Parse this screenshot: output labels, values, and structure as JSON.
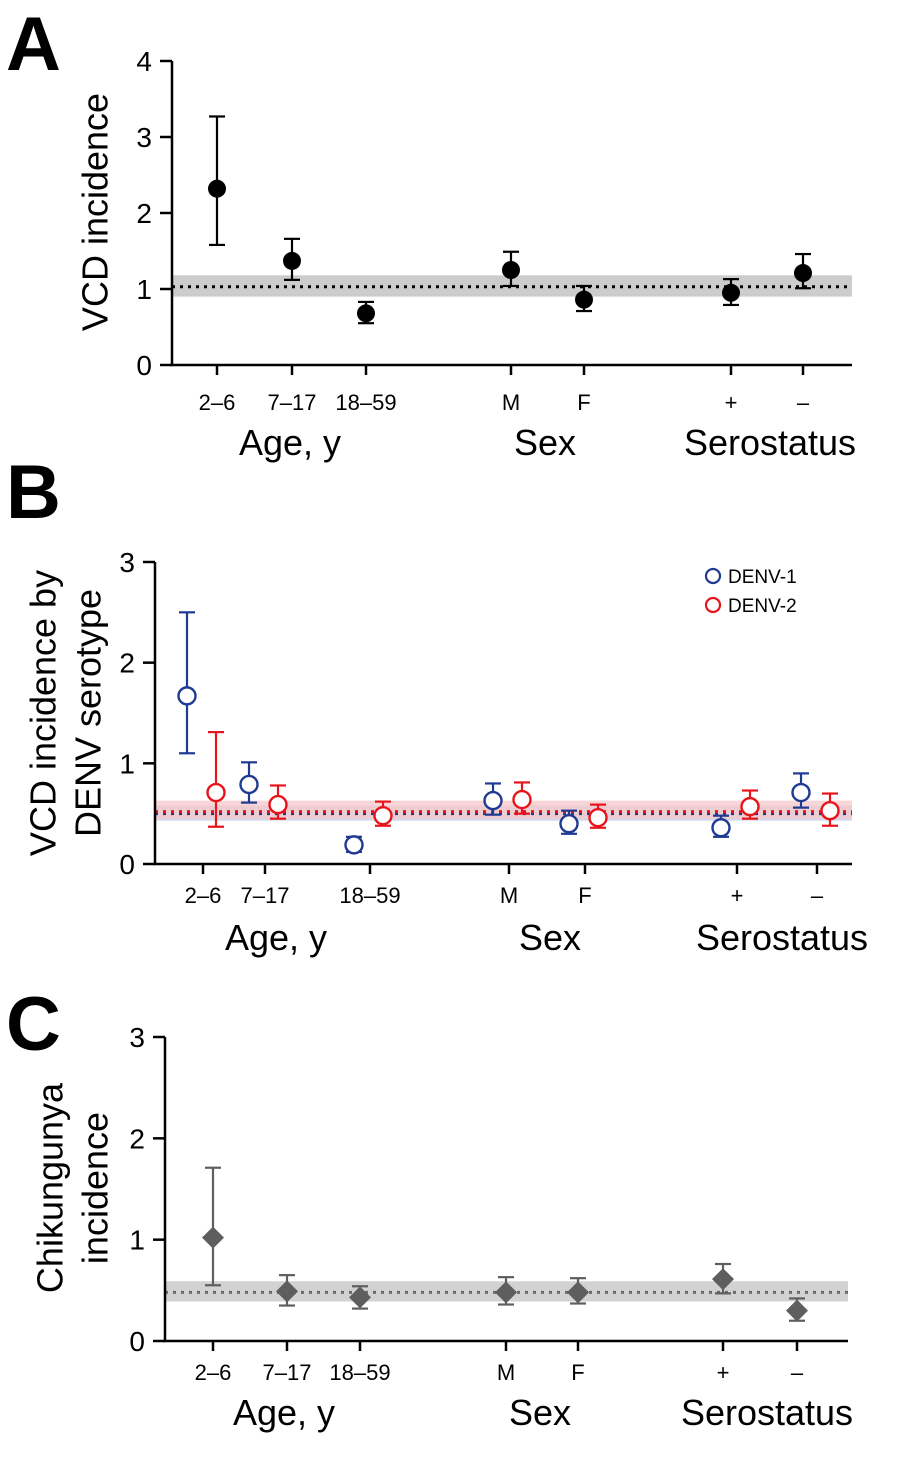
{
  "chart_data": [
    {
      "panel": "A",
      "type": "scatter",
      "ylabel": "VCD incidence",
      "ylim": [
        0,
        4
      ],
      "yticks": [
        0,
        1,
        2,
        3,
        4
      ],
      "categories": [
        "2–6",
        "7–17",
        "18–59",
        "M",
        "F",
        "+",
        "–"
      ],
      "groups": [
        {
          "label": "Age, y",
          "categories": [
            "2–6",
            "7–17",
            "18–59"
          ]
        },
        {
          "label": "Sex",
          "categories": [
            "M",
            "F"
          ]
        },
        {
          "label": "Serostatus",
          "categories": [
            "+",
            "–"
          ]
        }
      ],
      "reference": {
        "value": 1.03,
        "band": [
          0.9,
          1.18
        ],
        "color": "#000000",
        "band_color": "#cccccc"
      },
      "series": [
        {
          "marker": "filled-circle",
          "color": "#000000",
          "values": [
            2.32,
            1.37,
            0.68,
            1.25,
            0.86,
            0.95,
            1.21
          ],
          "lower": [
            1.58,
            1.12,
            0.55,
            1.04,
            0.71,
            0.79,
            1.01
          ],
          "upper": [
            3.27,
            1.66,
            0.83,
            1.49,
            1.04,
            1.13,
            1.46
          ]
        }
      ]
    },
    {
      "panel": "B",
      "type": "scatter",
      "ylabel": "VCD incidence by DENV serotype",
      "ylim": [
        0,
        3
      ],
      "yticks": [
        0,
        1,
        2,
        3
      ],
      "categories": [
        "2–6",
        "7–17",
        "18–59",
        "M",
        "F",
        "+",
        "–"
      ],
      "groups": [
        {
          "label": "Age, y",
          "categories": [
            "2–6",
            "7–17",
            "18–59"
          ]
        },
        {
          "label": "Sex",
          "categories": [
            "M",
            "F"
          ]
        },
        {
          "label": "Serostatus",
          "categories": [
            "+",
            "–"
          ]
        }
      ],
      "references": [
        {
          "series": "DENV-1",
          "value": 0.5,
          "band": [
            0.43,
            0.58
          ],
          "color": "#1f3a93",
          "band_color": "#c5cbe6"
        },
        {
          "series": "DENV-2",
          "value": 0.52,
          "band": [
            0.45,
            0.63
          ],
          "color": "#e8141b",
          "band_color": "#f6c8c9"
        }
      ],
      "legend": {
        "position": "top-right"
      },
      "series": [
        {
          "name": "DENV-1",
          "marker": "open-circle",
          "color": "#1f3a93",
          "values": [
            1.67,
            0.79,
            0.19,
            0.63,
            0.4,
            0.36,
            0.71
          ],
          "lower": [
            1.1,
            0.61,
            0.12,
            0.49,
            0.3,
            0.27,
            0.56
          ],
          "upper": [
            2.5,
            1.01,
            0.27,
            0.8,
            0.53,
            0.48,
            0.9
          ]
        },
        {
          "name": "DENV-2",
          "marker": "open-circle",
          "color": "#e8141b",
          "values": [
            0.71,
            0.59,
            0.48,
            0.64,
            0.46,
            0.57,
            0.53
          ],
          "lower": [
            0.37,
            0.45,
            0.38,
            0.5,
            0.36,
            0.45,
            0.38
          ],
          "upper": [
            1.31,
            0.78,
            0.62,
            0.81,
            0.59,
            0.73,
            0.7
          ]
        }
      ]
    },
    {
      "panel": "C",
      "type": "scatter",
      "ylabel": "Chikungunya incidence",
      "ylim": [
        0,
        3
      ],
      "yticks": [
        0,
        1,
        2,
        3
      ],
      "categories": [
        "2–6",
        "7–17",
        "18–59",
        "M",
        "F",
        "+",
        "–"
      ],
      "groups": [
        {
          "label": "Age, y",
          "categories": [
            "2–6",
            "7–17",
            "18–59"
          ]
        },
        {
          "label": "Sex",
          "categories": [
            "M",
            "F"
          ]
        },
        {
          "label": "Serostatus",
          "categories": [
            "+",
            "–"
          ]
        }
      ],
      "reference": {
        "value": 0.48,
        "band": [
          0.39,
          0.59
        ],
        "color": "#6b6b6b",
        "band_color": "#d2d2d2"
      },
      "series": [
        {
          "marker": "filled-diamond",
          "color": "#5e5e5e",
          "values": [
            1.02,
            0.49,
            0.43,
            0.48,
            0.48,
            0.61,
            0.3
          ],
          "lower": [
            0.55,
            0.35,
            0.32,
            0.36,
            0.37,
            0.47,
            0.2
          ],
          "upper": [
            1.71,
            0.65,
            0.54,
            0.63,
            0.62,
            0.76,
            0.42
          ]
        }
      ]
    }
  ]
}
